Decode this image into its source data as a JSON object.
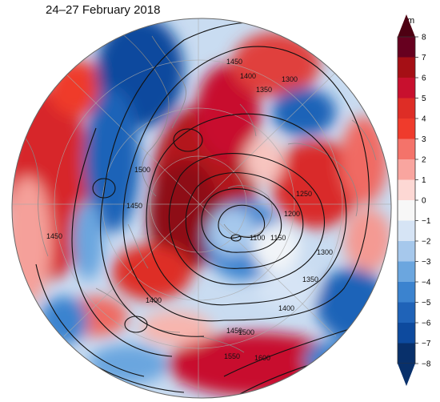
{
  "map": {
    "title": "24–27 February 2018",
    "projection": "north-polar-stereographic",
    "colorbar": {
      "unit": "m",
      "ticks": [
        "8",
        "7",
        "6",
        "5",
        "4",
        "3",
        "2",
        "1",
        "0",
        "−1",
        "−2",
        "−3",
        "−4",
        "−5",
        "−6",
        "−7",
        "−8"
      ],
      "colors": [
        "#67001f",
        "#a50f15",
        "#c8102e",
        "#de2d26",
        "#ef3b2c",
        "#f4736a",
        "#f9a59f",
        "#fdd8d4",
        "#f7f7f7",
        "#d6e4f5",
        "#a6c8ec",
        "#6ba6df",
        "#3b83cf",
        "#1f63b8",
        "#0d4a9e",
        "#08306b"
      ],
      "arrow_top_color": "#4d0012",
      "arrow_bottom_color": "#08306b"
    },
    "contour_labels": [
      {
        "text": "1450",
        "id": "c1450-north"
      },
      {
        "text": "1400",
        "id": "c1400-north"
      },
      {
        "text": "1350",
        "id": "c1350-north"
      },
      {
        "text": "1300",
        "id": "c1300-ne"
      },
      {
        "text": "1500",
        "id": "c1500-west"
      },
      {
        "text": "1450",
        "id": "c1450-west"
      },
      {
        "text": "1450",
        "id": "c1450-farwest"
      },
      {
        "text": "1250",
        "id": "c1250-east"
      },
      {
        "text": "1100",
        "id": "c1100-center"
      },
      {
        "text": "1150",
        "id": "c1150-center"
      },
      {
        "text": "1200",
        "id": "c1200-center"
      },
      {
        "text": "1300",
        "id": "c1300-se"
      },
      {
        "text": "1350",
        "id": "c1350-south"
      },
      {
        "text": "1400",
        "id": "c1400-sw"
      },
      {
        "text": "1400",
        "id": "c1400-south"
      },
      {
        "text": "1450",
        "id": "c1450-south"
      },
      {
        "text": "1500",
        "id": "c1500-south"
      },
      {
        "text": "1550",
        "id": "c1550-south"
      },
      {
        "text": "1600",
        "id": "c1600-south"
      }
    ]
  }
}
